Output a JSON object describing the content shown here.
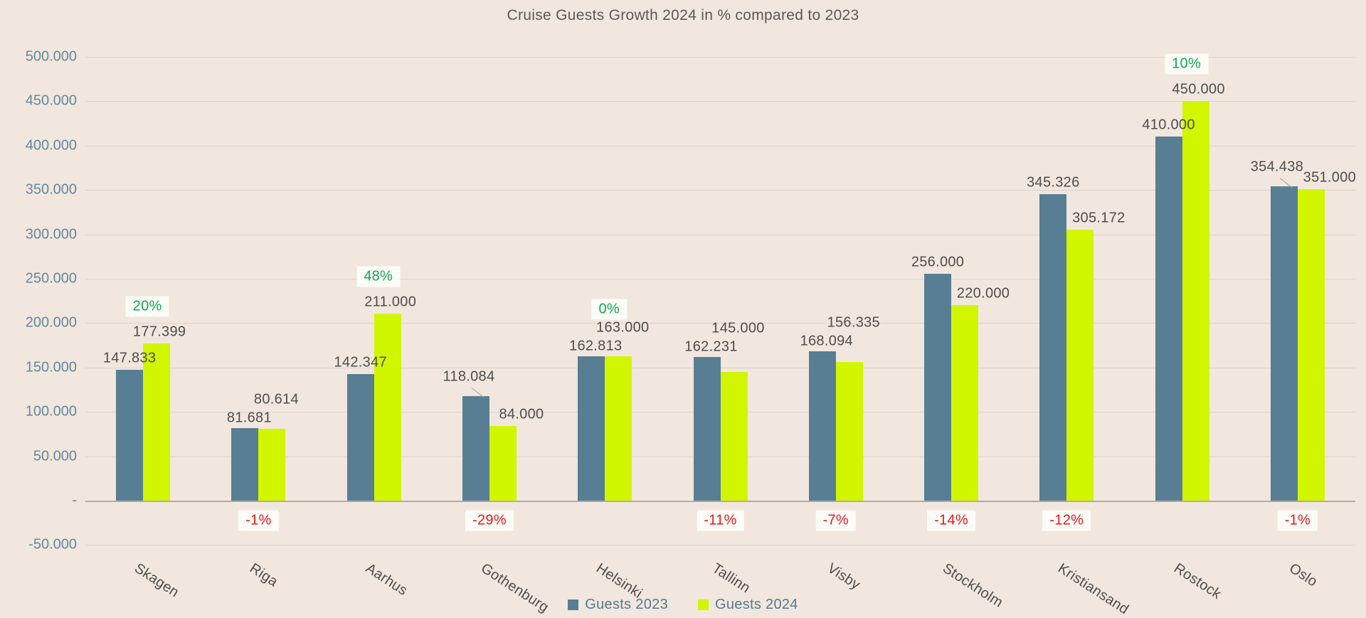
{
  "title": "Cruise Guests Growth 2024 in % compared to 2023",
  "colors": {
    "background": "#f1e7de",
    "guests_2023": "#587e93",
    "guests_2024": "#d2f500",
    "growth_positive": "#0ca750",
    "growth_negative": "#e8161b",
    "axis_labels": "#64889c",
    "value_labels": "#4f4d4b",
    "gridline": "#ddd4cb"
  },
  "chart_data": {
    "type": "bar",
    "title": "Cruise Guests Growth 2024 in % compared to 2023",
    "categories": [
      "Skagen",
      "Riga",
      "Aarhus",
      "Gothenburg",
      "Helsinki",
      "Tallinn",
      "Visby",
      "Stockholm",
      "Kristiansand",
      "Rostock",
      "Oslo"
    ],
    "series": [
      {
        "name": "Guests 2023",
        "values": [
          147833,
          81681,
          142347,
          118084,
          162813,
          162231,
          168094,
          256000,
          345326,
          410000,
          354438
        ]
      },
      {
        "name": "Guests 2024",
        "values": [
          177399,
          80614,
          211000,
          84000,
          163000,
          145000,
          156335,
          220000,
          305172,
          450000,
          351000
        ]
      }
    ],
    "growth_labels": [
      "20%",
      "-1%",
      "48%",
      "-29%",
      "0%",
      "-11%",
      "-7%",
      "-14%",
      "-12%",
      "10%",
      "-1%"
    ],
    "callouts": [
      "Gothenburg",
      "Oslo"
    ],
    "ylim": [
      -50000,
      500000
    ],
    "ytick_step": 50000,
    "ytick_zero_label": "-",
    "number_format": "thousands-dot",
    "grid": true,
    "legend_position": "bottom-center"
  }
}
